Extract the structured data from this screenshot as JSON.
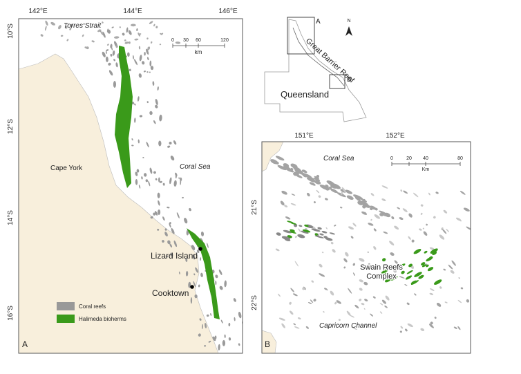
{
  "panel_a": {
    "label": "A",
    "lon_labels": [
      "142°E",
      "144°E",
      "146°E"
    ],
    "lat_labels": [
      "10°S",
      "12°S",
      "14°S",
      "16°S"
    ],
    "scale": {
      "ticks": [
        "0",
        "30",
        "60",
        "120"
      ],
      "unit": "km"
    },
    "places": [
      "Torres Strait",
      "Cape York",
      "Coral Sea",
      "Lizard Island",
      "Cooktown"
    ],
    "legend": [
      "Coral reefs",
      "Halimeda bioherms"
    ]
  },
  "inset": {
    "box_labels": [
      "A",
      "B"
    ],
    "north": "N",
    "reef": "Great Barrier Reef",
    "state": "Queensland"
  },
  "panel_b": {
    "label": "B",
    "lon_labels": [
      "151°E",
      "152°E"
    ],
    "lat_labels": [
      "21°S",
      "22°S"
    ],
    "scale": {
      "ticks": [
        "0",
        "20",
        "40",
        "80"
      ],
      "unit": "Km"
    },
    "places": [
      "Coral Sea",
      "Capricorn Channel"
    ],
    "swain_lines": [
      "Swain Reefs",
      "Complex"
    ]
  }
}
